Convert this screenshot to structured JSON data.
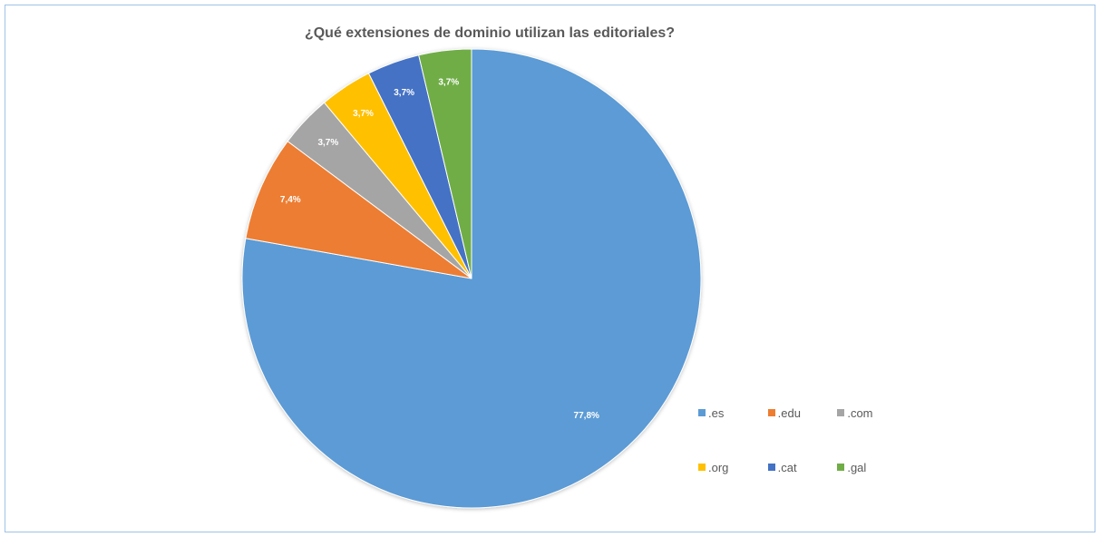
{
  "chart_data": {
    "type": "pie",
    "title": "¿Qué extensiones de dominio utilizan las editoriales?",
    "slices": [
      {
        "label": ".es",
        "value": 77.8,
        "data_label": "77,8%",
        "color": "#5b9bd5"
      },
      {
        "label": ".edu",
        "value": 7.4,
        "data_label": "7,4%",
        "color": "#ed7d31"
      },
      {
        "label": ".com",
        "value": 3.7,
        "data_label": "3,7%",
        "color": "#a5a5a5"
      },
      {
        "label": ".org",
        "value": 3.7,
        "data_label": "3,7%",
        "color": "#ffc000"
      },
      {
        "label": ".cat",
        "value": 3.7,
        "data_label": "3,7%",
        "color": "#4472c4"
      },
      {
        "label": ".gal",
        "value": 3.7,
        "data_label": "3,7%",
        "color": "#70ad47"
      }
    ],
    "legend_position": "bottom-right"
  }
}
